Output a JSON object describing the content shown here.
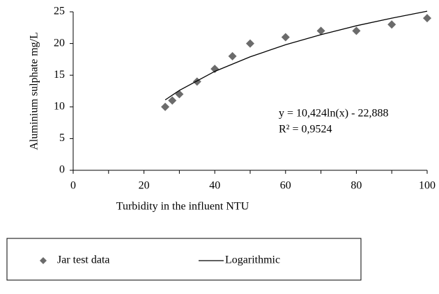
{
  "chart_data": {
    "type": "scatter",
    "xlabel": "Turbidity in the influent NTU",
    "ylabel": "Aluminium sulphate  mg/L",
    "xlim": [
      0,
      100
    ],
    "xticks": [
      0,
      20,
      40,
      60,
      80,
      100
    ],
    "xminor_ticks": [
      10,
      30,
      50,
      70,
      90
    ],
    "ylim": [
      0,
      25
    ],
    "yticks": [
      0,
      5,
      10,
      15,
      20,
      25
    ],
    "grid": false,
    "series": [
      {
        "name": "Jar test data",
        "color": "#6b6b6b",
        "marker": "diamond",
        "x": [
          26,
          28,
          30,
          35,
          40,
          45,
          50,
          60,
          70,
          80,
          90,
          100
        ],
        "values": [
          10,
          11,
          12,
          14,
          16,
          18,
          20,
          21,
          22,
          22,
          23,
          24
        ]
      },
      {
        "name": "Logarithmic",
        "color": "#000000",
        "marker": "line",
        "x": [
          26,
          30,
          40,
          50,
          60,
          70,
          80,
          90,
          100
        ],
        "values": [
          11.1,
          12.6,
          15.6,
          17.9,
          19.8,
          21.4,
          22.8,
          24.0,
          25.1
        ]
      }
    ],
    "annotations": [
      "y = 10,424ln(x) - 22,888",
      "R² = 0,9524"
    ],
    "legend": "bottom"
  }
}
